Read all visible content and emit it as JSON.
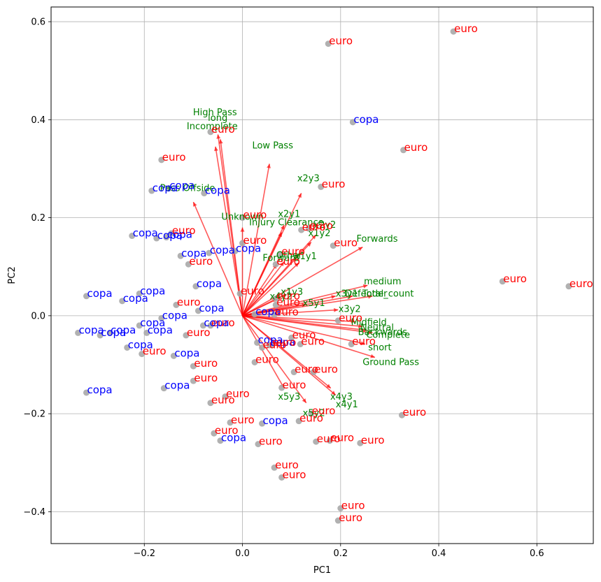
{
  "chart_data": {
    "type": "scatter",
    "subtype": "pca-biplot",
    "title": "",
    "xlabel": "PC1",
    "ylabel": "PC2",
    "xlim": [
      -0.39,
      0.715
    ],
    "ylim": [
      -0.465,
      0.63
    ],
    "xticks": [
      -0.2,
      0.0,
      0.2,
      0.4,
      0.6
    ],
    "xtick_labels": [
      "−0.2",
      "0.0",
      "0.2",
      "0.4",
      "0.6"
    ],
    "yticks": [
      -0.4,
      -0.2,
      0.0,
      0.2,
      0.4,
      0.6
    ],
    "ytick_labels": [
      "−0.4",
      "−0.2",
      "0.0",
      "0.2",
      "0.4",
      "0.6"
    ],
    "grid": true,
    "colors": {
      "point": "#a8a8a8",
      "copa": "#0000ff",
      "euro": "#ff0000",
      "arrow": "#ff0000",
      "variable": "#008000",
      "grid": "#b0b0b0"
    },
    "observations": [
      {
        "x": 0.43,
        "y": 0.58,
        "label": "euro"
      },
      {
        "x": 0.175,
        "y": 0.555,
        "label": "euro"
      },
      {
        "x": -0.065,
        "y": 0.375,
        "label": "euro"
      },
      {
        "x": -0.165,
        "y": 0.318,
        "label": "euro"
      },
      {
        "x": 0.225,
        "y": 0.395,
        "label": "copa"
      },
      {
        "x": 0.328,
        "y": 0.338,
        "label": "euro"
      },
      {
        "x": 0.16,
        "y": 0.263,
        "label": "euro"
      },
      {
        "x": -0.185,
        "y": 0.255,
        "label": "copa"
      },
      {
        "x": -0.15,
        "y": 0.26,
        "label": "copa"
      },
      {
        "x": -0.078,
        "y": 0.25,
        "label": "copa"
      },
      {
        "x": -0.225,
        "y": 0.163,
        "label": "copa"
      },
      {
        "x": -0.175,
        "y": 0.158,
        "label": "copa"
      },
      {
        "x": -0.155,
        "y": 0.16,
        "label": "copa"
      },
      {
        "x": -0.145,
        "y": 0.168,
        "label": "euro"
      },
      {
        "x": 0.0,
        "y": 0.2,
        "label": "euro"
      },
      {
        "x": 0.12,
        "y": 0.175,
        "label": "euro"
      },
      {
        "x": 0.135,
        "y": 0.178,
        "label": "euro"
      },
      {
        "x": 0.185,
        "y": 0.143,
        "label": "euro"
      },
      {
        "x": -0.126,
        "y": 0.122,
        "label": "copa"
      },
      {
        "x": -0.068,
        "y": 0.128,
        "label": "copa"
      },
      {
        "x": -0.015,
        "y": 0.132,
        "label": "copa"
      },
      {
        "x": 0.0,
        "y": 0.148,
        "label": "euro"
      },
      {
        "x": -0.11,
        "y": 0.105,
        "label": "euro"
      },
      {
        "x": 0.078,
        "y": 0.125,
        "label": "euro"
      },
      {
        "x": 0.068,
        "y": 0.105,
        "label": "euro"
      },
      {
        "x": 0.53,
        "y": 0.07,
        "label": "euro"
      },
      {
        "x": 0.665,
        "y": 0.06,
        "label": "euro"
      },
      {
        "x": -0.318,
        "y": 0.04,
        "label": "copa"
      },
      {
        "x": -0.245,
        "y": 0.03,
        "label": "copa"
      },
      {
        "x": -0.21,
        "y": 0.045,
        "label": "copa"
      },
      {
        "x": -0.095,
        "y": 0.06,
        "label": "copa"
      },
      {
        "x": -0.005,
        "y": 0.045,
        "label": "euro"
      },
      {
        "x": 0.068,
        "y": 0.035,
        "label": "euro"
      },
      {
        "x": 0.068,
        "y": 0.022,
        "label": "euro"
      },
      {
        "x": -0.135,
        "y": 0.022,
        "label": "euro"
      },
      {
        "x": -0.165,
        "y": -0.005,
        "label": "copa"
      },
      {
        "x": -0.09,
        "y": 0.01,
        "label": "copa"
      },
      {
        "x": 0.025,
        "y": 0.003,
        "label": "copa"
      },
      {
        "x": 0.065,
        "y": 0.002,
        "label": "euro"
      },
      {
        "x": -0.065,
        "y": -0.02,
        "label": "euro"
      },
      {
        "x": -0.08,
        "y": -0.02,
        "label": "copa"
      },
      {
        "x": -0.115,
        "y": -0.04,
        "label": "euro"
      },
      {
        "x": 0.195,
        "y": -0.01,
        "label": "euro"
      },
      {
        "x": -0.335,
        "y": -0.035,
        "label": "copa"
      },
      {
        "x": -0.29,
        "y": -0.04,
        "label": "copa"
      },
      {
        "x": -0.27,
        "y": -0.035,
        "label": "copa"
      },
      {
        "x": -0.21,
        "y": -0.02,
        "label": "copa"
      },
      {
        "x": -0.195,
        "y": -0.035,
        "label": "copa"
      },
      {
        "x": -0.235,
        "y": -0.065,
        "label": "copa"
      },
      {
        "x": -0.205,
        "y": -0.078,
        "label": "euro"
      },
      {
        "x": -0.14,
        "y": -0.082,
        "label": "copa"
      },
      {
        "x": 0.03,
        "y": -0.055,
        "label": "copa"
      },
      {
        "x": 0.055,
        "y": -0.06,
        "label": "copa"
      },
      {
        "x": 0.04,
        "y": -0.065,
        "label": "euro"
      },
      {
        "x": 0.06,
        "y": -0.06,
        "label": "euro"
      },
      {
        "x": 0.1,
        "y": -0.045,
        "label": "euro"
      },
      {
        "x": 0.118,
        "y": -0.058,
        "label": "euro"
      },
      {
        "x": 0.222,
        "y": -0.058,
        "label": "euro"
      },
      {
        "x": -0.1,
        "y": -0.103,
        "label": "euro"
      },
      {
        "x": 0.025,
        "y": -0.095,
        "label": "euro"
      },
      {
        "x": 0.105,
        "y": -0.115,
        "label": "euro"
      },
      {
        "x": 0.145,
        "y": -0.115,
        "label": "euro"
      },
      {
        "x": -0.1,
        "y": -0.133,
        "label": "euro"
      },
      {
        "x": -0.16,
        "y": -0.148,
        "label": "copa"
      },
      {
        "x": 0.08,
        "y": -0.147,
        "label": "euro"
      },
      {
        "x": -0.318,
        "y": -0.157,
        "label": "copa"
      },
      {
        "x": -0.035,
        "y": -0.165,
        "label": "euro"
      },
      {
        "x": -0.065,
        "y": -0.178,
        "label": "euro"
      },
      {
        "x": 0.14,
        "y": -0.2,
        "label": "euro"
      },
      {
        "x": 0.325,
        "y": -0.203,
        "label": "euro"
      },
      {
        "x": -0.025,
        "y": -0.218,
        "label": "euro"
      },
      {
        "x": 0.04,
        "y": -0.22,
        "label": "copa"
      },
      {
        "x": 0.115,
        "y": -0.215,
        "label": "euro"
      },
      {
        "x": -0.058,
        "y": -0.24,
        "label": "euro"
      },
      {
        "x": -0.045,
        "y": -0.255,
        "label": "copa"
      },
      {
        "x": 0.032,
        "y": -0.262,
        "label": "euro"
      },
      {
        "x": 0.15,
        "y": -0.257,
        "label": "euro"
      },
      {
        "x": 0.178,
        "y": -0.255,
        "label": "euro"
      },
      {
        "x": 0.24,
        "y": -0.26,
        "label": "euro"
      },
      {
        "x": 0.065,
        "y": -0.31,
        "label": "euro"
      },
      {
        "x": 0.08,
        "y": -0.33,
        "label": "euro"
      },
      {
        "x": 0.2,
        "y": -0.393,
        "label": "euro"
      },
      {
        "x": 0.195,
        "y": -0.418,
        "label": "euro"
      }
    ],
    "loadings": [
      {
        "name": "High Pass",
        "x": -0.05,
        "y": 0.37
      },
      {
        "name": "long",
        "x": -0.045,
        "y": 0.36
      },
      {
        "name": "Incomplete",
        "x": -0.055,
        "y": 0.345
      },
      {
        "name": "Low Pass",
        "x": 0.055,
        "y": 0.31
      },
      {
        "name": "Pass Offside",
        "x": -0.1,
        "y": 0.232
      },
      {
        "name": "x2y3",
        "x": 0.12,
        "y": 0.25
      },
      {
        "name": "Unknown",
        "x": 0.0,
        "y": 0.18
      },
      {
        "name": "x2y1",
        "x": 0.085,
        "y": 0.185
      },
      {
        "name": "Injury Clearance",
        "x": 0.08,
        "y": 0.17
      },
      {
        "name": "x2y2",
        "x": 0.15,
        "y": 0.165
      },
      {
        "name": "x1y2",
        "x": 0.14,
        "y": 0.15
      },
      {
        "name": "Forwards",
        "x": 0.245,
        "y": 0.14
      },
      {
        "name": "x1y1",
        "x": 0.115,
        "y": 0.108
      },
      {
        "name": "Forward",
        "x": 0.07,
        "y": 0.105
      },
      {
        "name": "Other",
        "x": 0.085,
        "y": 0.11
      },
      {
        "name": "medium",
        "x": 0.255,
        "y": 0.062
      },
      {
        "name": "x1y3",
        "x": 0.09,
        "y": 0.043
      },
      {
        "name": "Defender",
        "x": 0.225,
        "y": 0.04
      },
      {
        "name": "Total_count",
        "x": 0.265,
        "y": 0.04
      },
      {
        "name": "x3y1",
        "x": 0.19,
        "y": 0.04
      },
      {
        "name": "x4y2",
        "x": 0.07,
        "y": 0.035
      },
      {
        "name": "x5y1",
        "x": 0.13,
        "y": 0.023
      },
      {
        "name": "x3y2",
        "x": 0.195,
        "y": 0.012
      },
      {
        "name": "Midfield",
        "x": 0.23,
        "y": -0.012
      },
      {
        "name": "Neutral",
        "x": 0.245,
        "y": -0.022
      },
      {
        "name": "Backwards",
        "x": 0.255,
        "y": -0.03
      },
      {
        "name": "Complete",
        "x": 0.265,
        "y": -0.035
      },
      {
        "name": "short",
        "x": 0.25,
        "y": -0.058
      },
      {
        "name": "Ground Pass",
        "x": 0.27,
        "y": -0.085
      },
      {
        "name": "x5y3",
        "x": 0.085,
        "y": -0.148
      },
      {
        "name": "x4y3",
        "x": 0.18,
        "y": -0.148
      },
      {
        "name": "x4y1",
        "x": 0.19,
        "y": -0.162
      },
      {
        "name": "x5y2",
        "x": 0.13,
        "y": -0.178
      }
    ]
  }
}
